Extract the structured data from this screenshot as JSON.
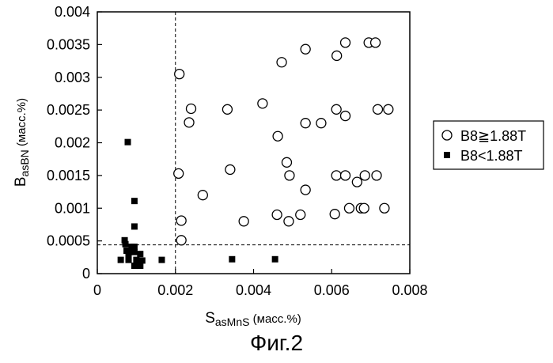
{
  "caption": "Фиг.2",
  "chart_data": {
    "type": "scatter",
    "xlabel": {
      "main": "S",
      "sub": "asMnS",
      "unit": " (масс.%)"
    },
    "ylabel": {
      "main": "B",
      "sub": "asBN",
      "unit": " (масс.%)"
    },
    "xlim": [
      0,
      0.008
    ],
    "ylim": [
      0,
      0.004
    ],
    "x_ticks": [
      "0",
      "0.002",
      "0.004",
      "0.006",
      "0.008"
    ],
    "y_ticks": [
      "0",
      "0.0005",
      "0.001",
      "0.0015",
      "0.002",
      "0.0025",
      "0.003",
      "0.0035",
      "0.004"
    ],
    "grid": false,
    "reference_lines": {
      "x": 0.002,
      "y": 0.00044
    },
    "legend_position": "right",
    "series": [
      {
        "name": "B8≧1.88T",
        "marker": "circle-open",
        "points": [
          [
            0.00635,
            0.00353
          ],
          [
            0.00695,
            0.00353
          ],
          [
            0.00712,
            0.00353
          ],
          [
            0.00533,
            0.00343
          ],
          [
            0.00613,
            0.00333
          ],
          [
            0.00472,
            0.00323
          ],
          [
            0.0021,
            0.00305
          ],
          [
            0.0024,
            0.00252
          ],
          [
            0.00333,
            0.00251
          ],
          [
            0.00423,
            0.0026
          ],
          [
            0.00612,
            0.00251
          ],
          [
            0.00718,
            0.00251
          ],
          [
            0.00745,
            0.00251
          ],
          [
            0.00235,
            0.00231
          ],
          [
            0.00533,
            0.0023
          ],
          [
            0.00573,
            0.0023
          ],
          [
            0.00635,
            0.00241
          ],
          [
            0.00462,
            0.0021
          ],
          [
            0.00485,
            0.0017
          ],
          [
            0.00492,
            0.0015
          ],
          [
            0.00612,
            0.0015
          ],
          [
            0.00635,
            0.0015
          ],
          [
            0.00665,
            0.0014
          ],
          [
            0.00685,
            0.0015
          ],
          [
            0.00715,
            0.0015
          ],
          [
            0.00208,
            0.00153
          ],
          [
            0.0034,
            0.00159
          ],
          [
            0.0027,
            0.0012
          ],
          [
            0.00533,
            0.00128
          ],
          [
            0.00215,
            0.00081
          ],
          [
            0.00375,
            0.0008
          ],
          [
            0.0046,
            0.0009
          ],
          [
            0.0049,
            0.0008
          ],
          [
            0.0052,
            0.0009
          ],
          [
            0.00608,
            0.00091
          ],
          [
            0.00645,
            0.001
          ],
          [
            0.00675,
            0.001
          ],
          [
            0.00683,
            0.001
          ],
          [
            0.00735,
            0.001
          ],
          [
            0.00215,
            0.00051
          ]
        ]
      },
      {
        "name": "B8<1.88T",
        "marker": "square-filled",
        "points": [
          [
            0.00078,
            0.00201
          ],
          [
            0.00095,
            0.00111
          ],
          [
            0.00095,
            0.00072
          ],
          [
            0.0007,
            0.00051
          ],
          [
            0.00072,
            0.00045
          ],
          [
            0.00088,
            0.00041
          ],
          [
            0.00095,
            0.00041
          ],
          [
            0.00075,
            0.00035
          ],
          [
            0.0008,
            0.00033
          ],
          [
            0.00095,
            0.00033
          ],
          [
            0.0011,
            0.0003
          ],
          [
            0.0008,
            0.00025
          ],
          [
            0.0008,
            0.00021
          ],
          [
            0.0006,
            0.00021
          ],
          [
            0.001,
            0.00021
          ],
          [
            0.00115,
            0.0002
          ],
          [
            0.00095,
            0.00012
          ],
          [
            0.0011,
            0.00012
          ],
          [
            0.00165,
            0.00021
          ],
          [
            0.00345,
            0.00022
          ],
          [
            0.00455,
            0.00022
          ]
        ]
      }
    ]
  }
}
